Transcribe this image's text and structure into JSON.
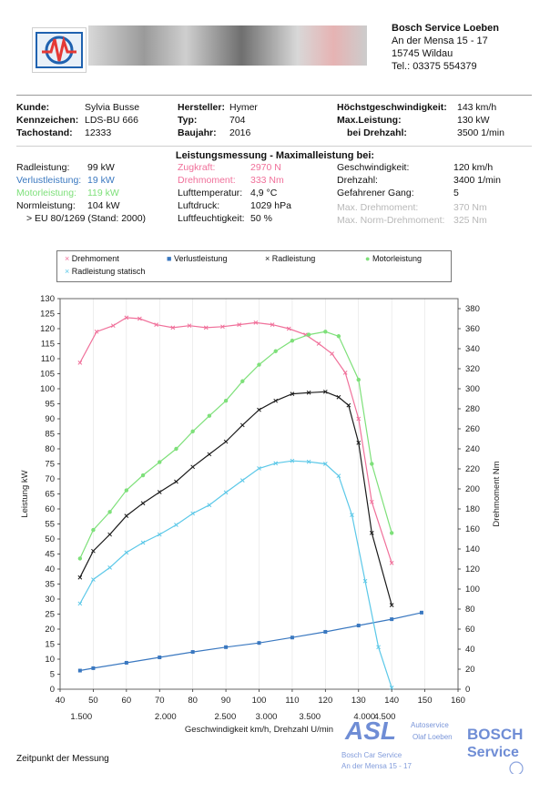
{
  "address": {
    "company": "Bosch Service Loeben",
    "street": "An der Mensa 15 - 17",
    "city": "15745 Wildau",
    "phone": "Tel.: 03375 554379"
  },
  "vehicle": {
    "kunde_label": "Kunde:",
    "kunde": "Sylvia Busse",
    "kennzeichen_label": "Kennzeichen:",
    "kennzeichen": "LDS-BU 666",
    "tachostand_label": "Tachostand:",
    "tachostand": "12333",
    "hersteller_label": "Hersteller:",
    "hersteller": "Hymer",
    "typ_label": "Typ:",
    "typ": "704",
    "baujahr_label": "Baujahr:",
    "baujahr": "2016",
    "vmax_label": "Höchstgeschwindigkeit:",
    "vmax": "143 km/h",
    "maxleistung_label": "Max.Leistung:",
    "maxleistung": "130 kW",
    "drehzahl_label": "bei Drehzahl:",
    "drehzahl": "3500 1/min"
  },
  "measurement": {
    "title": "Leistungsmessung - Maximalleistung bei:",
    "radleistung_label": "Radleistung:",
    "radleistung": "99 kW",
    "verlust_label": "Verlustleistung:",
    "verlust": "19 kW",
    "motor_label": "Motorleistung:",
    "motor": "119 kW",
    "norm_label": "Normleistung:",
    "norm": "104 kW",
    "eu_note": "> EU 80/1269 (Stand: 2000)",
    "zugkraft_label": "Zugkraft:",
    "zugkraft": "2970 N",
    "drehmoment_label": "Drehmoment:",
    "drehmoment": "333 Nm",
    "lufttemp_label": "Lufttemperatur:",
    "lufttemp": "4,9 °C",
    "luftdruck_label": "Luftdruck:",
    "luftdruck": "1029 hPa",
    "luftfeucht_label": "Luftfeuchtigkeit:",
    "luftfeucht": "50 %",
    "geschw_label": "Geschwindigkeit:",
    "geschw": "120 km/h",
    "drehzahl2_label": "Drehzahl:",
    "drehzahl2": "3400 1/min",
    "gang_label": "Gefahrener Gang:",
    "gang": "5",
    "maxdreh_label": "Max. Drehmoment:",
    "maxdreh": "370 Nm",
    "maxnorm_label": "Max. Norm-Drehmoment:",
    "maxnorm": "325 Nm"
  },
  "colors": {
    "drehmoment": "#f0709a",
    "verlust": "#3a78c0",
    "radleistung": "#1a1a1a",
    "motor": "#7ee07a",
    "statisch": "#5bc8e8"
  },
  "footer": {
    "text": "Zeitpunkt der Messung"
  },
  "stamp": {
    "asl": "ASL",
    "autoservice": "Autoservice",
    "owner": "Olaf Loeben",
    "bosch": "BOSCH",
    "service": "Service",
    "line1": "Bosch Car Service",
    "line2": "An der Mensa 15 - 17"
  },
  "chart_data": {
    "type": "line",
    "xlabel": "Geschwindigkeit km/h, Drehzahl U/min",
    "ylabel_left": "Leistung kW",
    "ylabel_right": "Drehmoment Nm",
    "x_range": [
      40,
      160
    ],
    "x_ticks": [
      40,
      50,
      60,
      70,
      80,
      90,
      100,
      110,
      120,
      130,
      140,
      150,
      160
    ],
    "rpm_ticks": [
      {
        "x": 46.4,
        "label": "1.500"
      },
      {
        "x": 71.8,
        "label": "2.000"
      },
      {
        "x": 89.8,
        "label": "2.500"
      },
      {
        "x": 102.2,
        "label": "3.000"
      },
      {
        "x": 115.3,
        "label": "3.500"
      },
      {
        "x": 131.8,
        "label": "4.000"
      },
      {
        "x": 137.9,
        "label": "4.500"
      }
    ],
    "y_left_range": [
      0,
      130
    ],
    "y_left_ticks": [
      0,
      5,
      10,
      15,
      20,
      25,
      30,
      35,
      40,
      45,
      50,
      55,
      60,
      65,
      70,
      75,
      80,
      85,
      90,
      95,
      100,
      105,
      110,
      115,
      120,
      125,
      130
    ],
    "y_right_range": [
      0,
      390
    ],
    "y_right_ticks": [
      0,
      20,
      40,
      60,
      80,
      100,
      120,
      140,
      160,
      180,
      200,
      220,
      240,
      260,
      280,
      300,
      320,
      340,
      360,
      380
    ],
    "legend": [
      "Drehmoment",
      "Verlustleistung",
      "Radleistung",
      "Motorleistung",
      "Radleistung statisch"
    ],
    "series": [
      {
        "name": "Drehmoment",
        "axis": "right",
        "marker": "x",
        "x": [
          46,
          51,
          56,
          60,
          64,
          69,
          74,
          79,
          84,
          89,
          94,
          99,
          104,
          109,
          114,
          118,
          122,
          126,
          130,
          134,
          140
        ],
        "y": [
          326,
          357,
          363,
          371,
          370,
          364,
          361,
          363,
          361,
          362,
          364,
          366,
          364,
          360,
          354,
          345,
          335,
          316,
          270,
          187,
          126
        ]
      },
      {
        "name": "Verlustleistung",
        "axis": "left",
        "marker": "square",
        "x": [
          46,
          50,
          60,
          70,
          80,
          90,
          100,
          110,
          120,
          130,
          140,
          149
        ],
        "y": [
          6.2,
          7.0,
          8.8,
          10.6,
          12.4,
          14.0,
          15.4,
          17.2,
          19.1,
          21.2,
          23.3,
          25.5
        ]
      },
      {
        "name": "Radleistung",
        "axis": "left",
        "marker": "x",
        "x": [
          46,
          50,
          55,
          60,
          65,
          70,
          75,
          80,
          85,
          90,
          95,
          100,
          105,
          110,
          115,
          120,
          124,
          127,
          130,
          134,
          140
        ],
        "y": [
          37.2,
          46.0,
          51.5,
          57.7,
          61.9,
          65.6,
          69.1,
          74.0,
          78.2,
          82.4,
          87.9,
          93.0,
          96.0,
          98.3,
          98.7,
          99.0,
          97.2,
          94.5,
          82.0,
          52.0,
          28.0
        ]
      },
      {
        "name": "Motorleistung",
        "axis": "left",
        "marker": "dot",
        "x": [
          46,
          50,
          55,
          60,
          65,
          70,
          75,
          80,
          85,
          90,
          95,
          100,
          105,
          110,
          115,
          120,
          124,
          130,
          134,
          140
        ],
        "y": [
          43.5,
          53.0,
          59.0,
          66.2,
          71.2,
          75.6,
          80.0,
          85.8,
          91.0,
          96.0,
          102.5,
          108.0,
          112.5,
          116.0,
          118.0,
          119.0,
          117.5,
          103.0,
          75.0,
          52.0
        ]
      },
      {
        "name": "Radleistung statisch",
        "axis": "left",
        "marker": "x",
        "x": [
          46,
          50,
          55,
          60,
          65,
          70,
          75,
          80,
          85,
          90,
          95,
          100,
          105,
          110,
          115,
          120,
          124,
          128,
          132,
          136,
          140
        ],
        "y": [
          28.5,
          36.5,
          40.5,
          45.5,
          48.8,
          51.5,
          54.7,
          58.5,
          61.3,
          65.5,
          69.5,
          73.5,
          75.2,
          76.0,
          75.7,
          75.0,
          71.0,
          58.0,
          36.0,
          14.0,
          0.5
        ]
      }
    ]
  }
}
